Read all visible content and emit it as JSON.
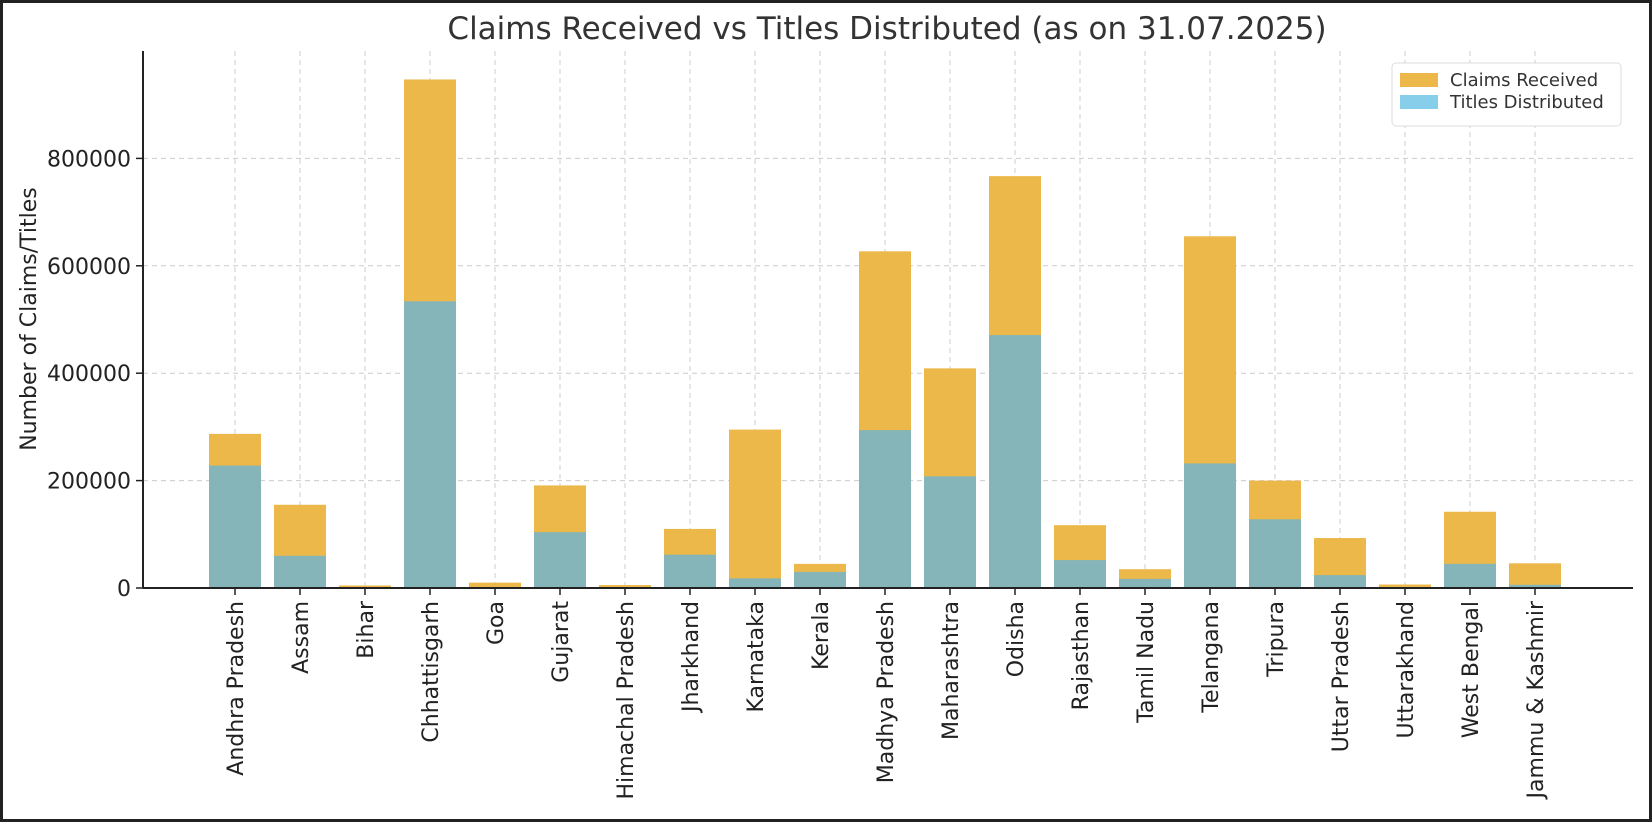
{
  "chart_data": {
    "type": "bar",
    "stacking": "overlay",
    "title": "Claims Received vs Titles Distributed (as on 31.07.2025)",
    "xlabel": "",
    "ylabel": "Number of Claims/Titles",
    "ylim": [
      0,
      1000000
    ],
    "yticks": [
      0,
      200000,
      400000,
      600000,
      800000
    ],
    "grid": true,
    "legend_position": "top-right",
    "categories": [
      "Andhra Pradesh",
      "Assam",
      "Bihar",
      "Chhattisgarh",
      "Goa",
      "Gujarat",
      "Himachal Pradesh",
      "Jharkhand",
      "Karnataka",
      "Kerala",
      "Madhya Pradesh",
      "Maharashtra",
      "Odisha",
      "Rajasthan",
      "Tamil Nadu",
      "Telangana",
      "Tripura",
      "Uttar Pradesh",
      "Uttarakhand",
      "West Bengal",
      "Jammu & Kashmir"
    ],
    "series": [
      {
        "name": "Claims Received",
        "color": "#ECB84A",
        "values": [
          287000,
          155000,
          4700,
          947000,
          10000,
          191000,
          5500,
          110000,
          295000,
          45000,
          627000,
          409000,
          767000,
          117000,
          35000,
          655000,
          200000,
          93000,
          6500,
          142000,
          46000
        ]
      },
      {
        "name": "Titles Distributed",
        "color": "#87CEEB",
        "values": [
          228000,
          60000,
          0,
          534000,
          0,
          104000,
          0,
          62000,
          18000,
          30000,
          294000,
          208000,
          471000,
          52000,
          17000,
          232000,
          128000,
          24000,
          0,
          45000,
          6000
        ]
      }
    ],
    "overlap_color": "#85B5B8"
  }
}
